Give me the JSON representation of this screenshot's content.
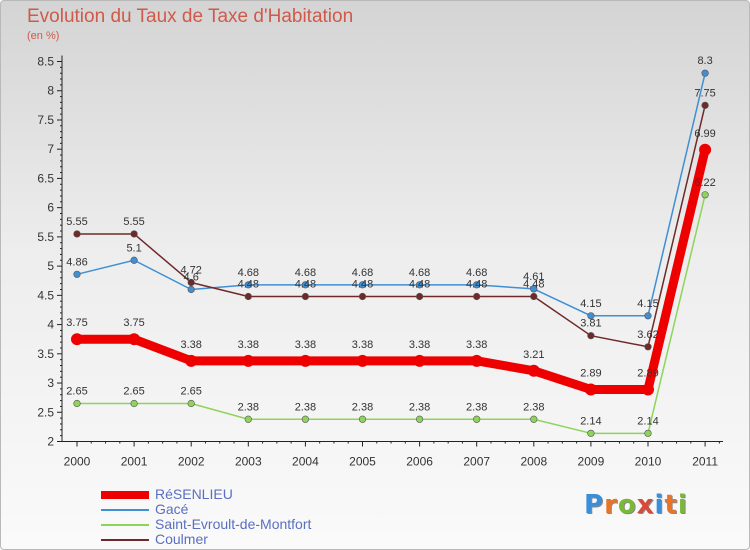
{
  "title": "Evolution du Taux de Taxe d'Habitation",
  "subtitle": "(en %)",
  "logo": {
    "text": "Proxiti",
    "letter_colors": [
      "#3a8fd8",
      "#e8742a",
      "#7ab83a",
      "#d84a3a",
      "#3a8fd8",
      "#e8742a",
      "#7ab83a"
    ]
  },
  "chart_data": {
    "type": "line",
    "x": [
      "2000",
      "2001",
      "2002",
      "2003",
      "2004",
      "2005",
      "2006",
      "2007",
      "2008",
      "2009",
      "2010",
      "2011"
    ],
    "ylim": [
      2,
      8.5
    ],
    "yticks": [
      "2",
      "2.5",
      "3",
      "3.5",
      "4",
      "4.5",
      "5",
      "5.5",
      "6",
      "6.5",
      "7",
      "7.5",
      "8",
      "8.5"
    ],
    "grid": false,
    "legend_position": "bottom-left",
    "series": [
      {
        "name": "RéSENLIEU",
        "color": "#ee0000",
        "values": [
          3.75,
          3.75,
          3.38,
          3.38,
          3.38,
          3.38,
          3.38,
          3.38,
          3.21,
          2.89,
          2.89,
          6.99
        ],
        "labels": [
          "3.75",
          "3.75",
          "3.38",
          "3.38",
          "3.38",
          "3.38",
          "3.38",
          "3.38",
          "3.21",
          "2.89",
          "2.89",
          "6.99"
        ]
      },
      {
        "name": "Gacé",
        "color": "#3f8fd2",
        "values": [
          4.86,
          5.1,
          4.6,
          4.68,
          4.68,
          4.68,
          4.68,
          4.68,
          4.61,
          4.15,
          4.15,
          8.3
        ],
        "labels": [
          "4.86",
          "5.1",
          "4.6",
          "4.68",
          "4.68",
          "4.68",
          "4.68",
          "4.68",
          "4.61",
          "4.15",
          "4.15",
          "8.3"
        ]
      },
      {
        "name": "Saint-Evroult-de-Montfort",
        "color": "#8fd45a",
        "values": [
          2.65,
          2.65,
          2.65,
          2.38,
          2.38,
          2.38,
          2.38,
          2.38,
          2.38,
          2.14,
          2.14,
          6.22
        ],
        "labels": [
          "2.65",
          "2.65",
          "2.65",
          "2.38",
          "2.38",
          "2.38",
          "2.38",
          "2.38",
          "2.38",
          "2.14",
          "2.14",
          "6.22"
        ]
      },
      {
        "name": "Coulmer",
        "color": "#6e2a2a",
        "values": [
          5.55,
          5.55,
          4.72,
          4.48,
          4.48,
          4.48,
          4.48,
          4.48,
          4.48,
          3.81,
          3.62,
          7.75
        ],
        "labels": [
          "5.55",
          "5.55",
          "4.72",
          "4.48",
          "4.48",
          "4.48",
          "4.48",
          "4.48",
          "4.48",
          "3.81",
          "3.62",
          "7.75"
        ]
      }
    ]
  }
}
